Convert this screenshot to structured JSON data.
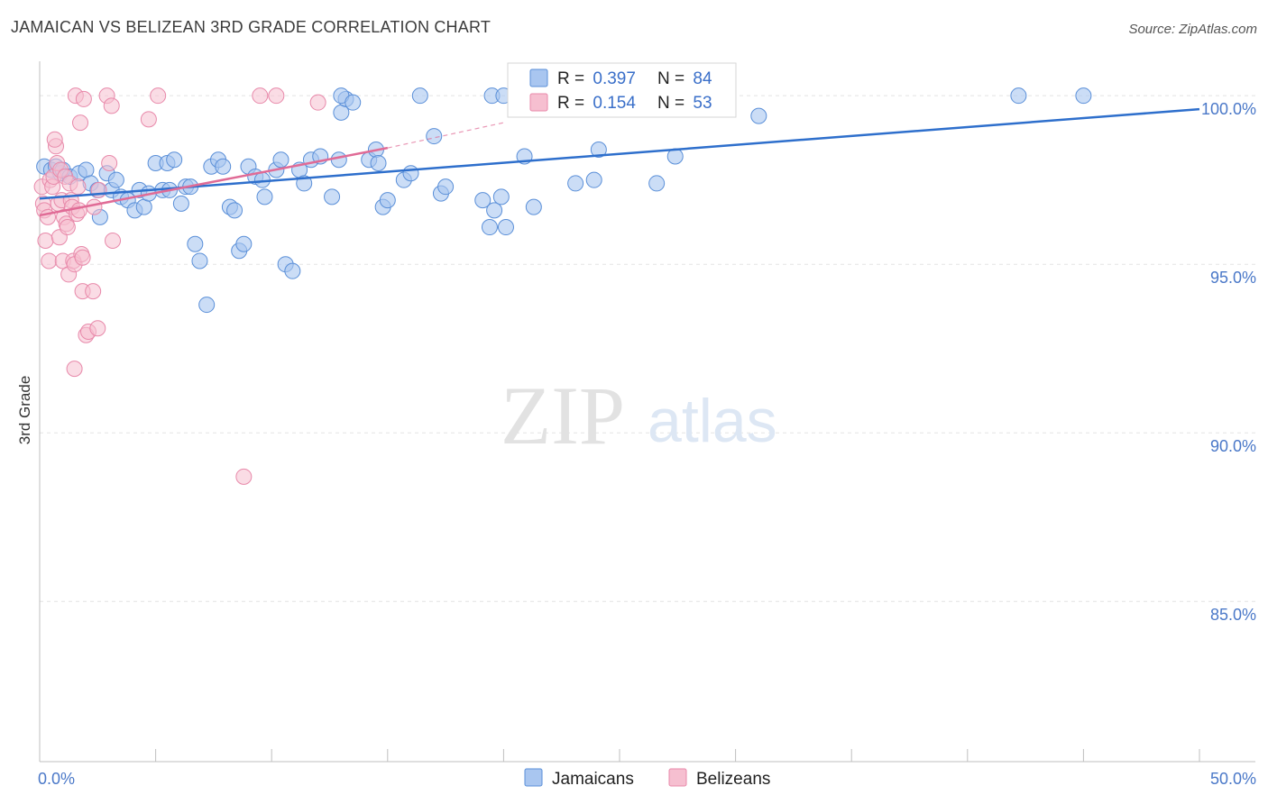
{
  "header": {
    "title": "JAMAICAN VS BELIZEAN 3RD GRADE CORRELATION CHART",
    "source": "Source: ZipAtlas.com"
  },
  "watermark": {
    "zip": "ZIP",
    "atlas": "atlas"
  },
  "colors": {
    "jamaican_fill": "#a9c6f0",
    "jamaican_stroke": "#5a8fd8",
    "jamaican_line": "#2e6fcc",
    "belizean_fill": "#f6bfd0",
    "belizean_stroke": "#e889aa",
    "belizean_line": "#e06b96",
    "tick_label": "#4a78c8",
    "grid": "#e3e3e3"
  },
  "legend_top": {
    "rows": [
      {
        "r_label": "R = ",
        "r_value": "0.397",
        "n_label": "N = ",
        "n_value": "84"
      },
      {
        "r_label": "R = ",
        "r_value": "0.154",
        "n_label": "N = ",
        "n_value": "53"
      }
    ]
  },
  "legend_bottom": {
    "items": [
      "Jamaicans",
      "Belizeans"
    ]
  },
  "chart_data": {
    "type": "scatter",
    "title": "JAMAICAN VS BELIZEAN 3RD GRADE CORRELATION CHART",
    "xlabel": "",
    "ylabel": "3rd Grade",
    "xlim": [
      0,
      50
    ],
    "ylim": [
      80.3,
      100.7
    ],
    "x_tick_labels": [
      {
        "value": 0,
        "label": "0.0%"
      },
      {
        "value": 50,
        "label": "50.0%"
      }
    ],
    "y_tick_labels": [
      {
        "value": 100,
        "label": "100.0%"
      },
      {
        "value": 95,
        "label": "95.0%"
      },
      {
        "value": 90,
        "label": "90.0%"
      },
      {
        "value": 85,
        "label": "85.0%"
      }
    ],
    "x_minor_ticks": [
      0,
      5,
      10,
      15,
      20,
      25,
      30,
      35,
      40,
      45,
      50
    ],
    "series": [
      {
        "name": "Jamaicans",
        "R": 0.397,
        "N": 84,
        "trend": {
          "x": [
            0,
            50
          ],
          "y": [
            96.95,
            99.6
          ],
          "dashed_to": null
        },
        "points": [
          [
            0.2,
            97.9
          ],
          [
            0.5,
            97.8
          ],
          [
            0.7,
            97.9
          ],
          [
            0.9,
            97.7
          ],
          [
            1.0,
            97.8
          ],
          [
            1.3,
            97.6
          ],
          [
            1.7,
            97.7
          ],
          [
            2.0,
            97.8
          ],
          [
            2.2,
            97.4
          ],
          [
            2.5,
            97.2
          ],
          [
            2.6,
            96.4
          ],
          [
            2.9,
            97.7
          ],
          [
            3.1,
            97.2
          ],
          [
            3.3,
            97.5
          ],
          [
            3.5,
            97.0
          ],
          [
            3.8,
            96.9
          ],
          [
            4.1,
            96.6
          ],
          [
            4.3,
            97.2
          ],
          [
            4.5,
            96.7
          ],
          [
            4.7,
            97.1
          ],
          [
            5.0,
            98.0
          ],
          [
            5.3,
            97.2
          ],
          [
            5.6,
            97.2
          ],
          [
            5.5,
            98.0
          ],
          [
            5.8,
            98.1
          ],
          [
            6.1,
            96.8
          ],
          [
            6.3,
            97.3
          ],
          [
            6.5,
            97.3
          ],
          [
            6.7,
            95.6
          ],
          [
            6.9,
            95.1
          ],
          [
            7.2,
            93.8
          ],
          [
            7.4,
            97.9
          ],
          [
            7.7,
            98.1
          ],
          [
            7.9,
            97.9
          ],
          [
            8.2,
            96.7
          ],
          [
            8.4,
            96.6
          ],
          [
            8.6,
            95.4
          ],
          [
            8.8,
            95.6
          ],
          [
            9.0,
            97.9
          ],
          [
            9.3,
            97.6
          ],
          [
            9.6,
            97.5
          ],
          [
            9.7,
            97.0
          ],
          [
            10.2,
            97.8
          ],
          [
            10.4,
            98.1
          ],
          [
            10.6,
            95.0
          ],
          [
            10.9,
            94.8
          ],
          [
            11.2,
            97.8
          ],
          [
            11.4,
            97.4
          ],
          [
            11.7,
            98.1
          ],
          [
            12.1,
            98.2
          ],
          [
            12.6,
            97.0
          ],
          [
            12.9,
            98.1
          ],
          [
            13.0,
            99.5
          ],
          [
            13.2,
            99.9
          ],
          [
            13.0,
            100.0
          ],
          [
            13.5,
            99.8
          ],
          [
            14.2,
            98.1
          ],
          [
            14.5,
            98.4
          ],
          [
            14.6,
            98.0
          ],
          [
            14.8,
            96.7
          ],
          [
            15.0,
            96.9
          ],
          [
            15.7,
            97.5
          ],
          [
            16.0,
            97.7
          ],
          [
            17.3,
            97.1
          ],
          [
            17.5,
            97.3
          ],
          [
            17.0,
            98.8
          ],
          [
            19.1,
            96.9
          ],
          [
            19.4,
            96.1
          ],
          [
            19.6,
            96.6
          ],
          [
            19.5,
            100.0
          ],
          [
            19.9,
            97.0
          ],
          [
            20.1,
            96.1
          ],
          [
            20.9,
            98.2
          ],
          [
            21.3,
            96.7
          ],
          [
            23.1,
            97.4
          ],
          [
            23.9,
            97.5
          ],
          [
            24.1,
            98.4
          ],
          [
            26.6,
            97.4
          ],
          [
            27.4,
            98.2
          ],
          [
            31.0,
            99.4
          ],
          [
            42.2,
            100.0
          ],
          [
            45.0,
            100.0
          ],
          [
            16.4,
            100.0
          ],
          [
            20.0,
            100.0
          ]
        ]
      },
      {
        "name": "Belizeans",
        "R": 0.154,
        "N": 53,
        "trend": {
          "x": [
            0,
            15
          ],
          "y": [
            96.45,
            98.45
          ],
          "dashed_to": {
            "x": 20,
            "y": 99.2
          }
        },
        "points": [
          [
            0.1,
            97.3
          ],
          [
            0.15,
            96.8
          ],
          [
            0.2,
            96.6
          ],
          [
            0.25,
            95.7
          ],
          [
            0.35,
            96.4
          ],
          [
            0.4,
            95.1
          ],
          [
            0.45,
            97.5
          ],
          [
            0.55,
            97.3
          ],
          [
            0.6,
            97.6
          ],
          [
            0.7,
            98.5
          ],
          [
            0.65,
            98.7
          ],
          [
            0.75,
            98.0
          ],
          [
            0.8,
            96.8
          ],
          [
            0.85,
            95.8
          ],
          [
            0.9,
            97.8
          ],
          [
            0.95,
            96.9
          ],
          [
            1.0,
            95.1
          ],
          [
            1.05,
            96.4
          ],
          [
            1.1,
            97.6
          ],
          [
            1.15,
            96.2
          ],
          [
            1.2,
            96.1
          ],
          [
            1.25,
            94.7
          ],
          [
            1.3,
            97.4
          ],
          [
            1.35,
            96.9
          ],
          [
            1.4,
            96.7
          ],
          [
            1.45,
            95.1
          ],
          [
            1.5,
            95.0
          ],
          [
            1.5,
            91.9
          ],
          [
            1.55,
            100.0
          ],
          [
            1.6,
            96.5
          ],
          [
            1.65,
            97.3
          ],
          [
            1.7,
            96.6
          ],
          [
            1.75,
            99.2
          ],
          [
            1.8,
            95.3
          ],
          [
            1.85,
            95.2
          ],
          [
            1.85,
            94.2
          ],
          [
            1.9,
            99.9
          ],
          [
            2.0,
            92.9
          ],
          [
            2.1,
            93.0
          ],
          [
            2.3,
            94.2
          ],
          [
            2.35,
            96.7
          ],
          [
            2.5,
            93.1
          ],
          [
            2.55,
            97.2
          ],
          [
            2.9,
            100.0
          ],
          [
            3.0,
            98.0
          ],
          [
            3.1,
            99.7
          ],
          [
            3.15,
            95.7
          ],
          [
            4.7,
            99.3
          ],
          [
            5.1,
            100.0
          ],
          [
            8.8,
            88.7
          ],
          [
            9.5,
            100.0
          ],
          [
            10.2,
            100.0
          ],
          [
            12.0,
            99.8
          ]
        ]
      }
    ]
  }
}
